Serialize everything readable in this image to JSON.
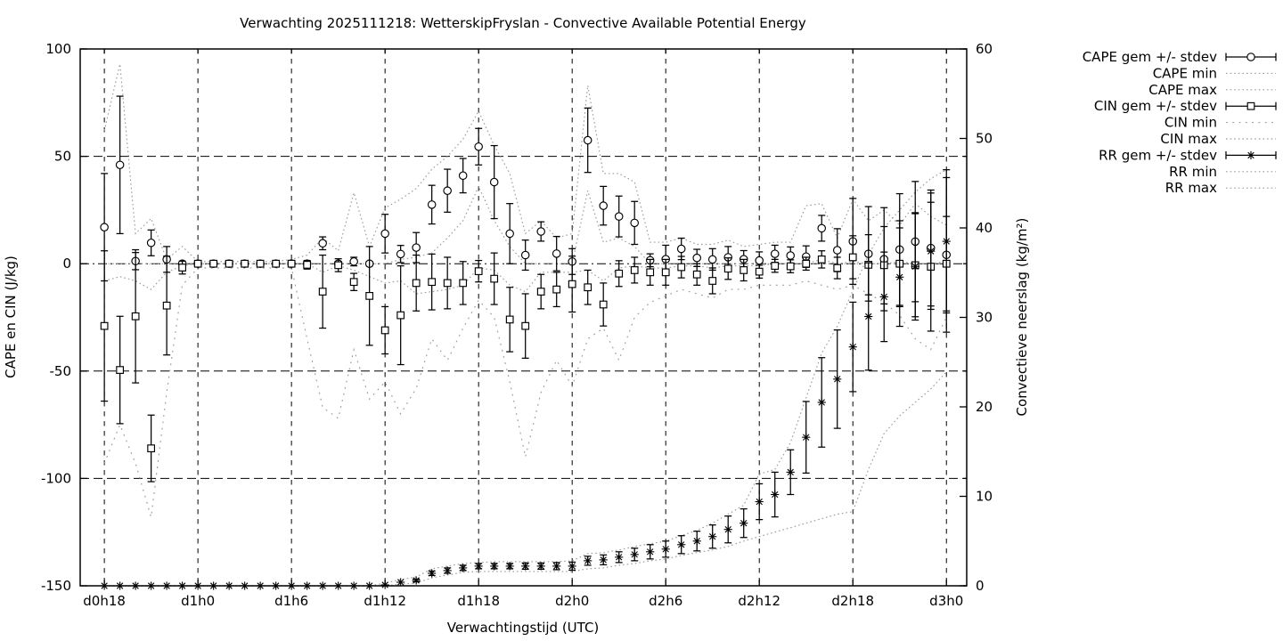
{
  "chart_data": {
    "type": "line",
    "title": "Verwachting 2025111218: WetterskipFryslan - Convective Available Potential Energy",
    "xlabel": "Verwachtingstijd (UTC)",
    "ylabel_left": "CAPE en CIN (J/kg)",
    "ylabel_right": "Convectieve neerslag (kg/m²)",
    "grid": "on",
    "legend_position": "outside-right",
    "x_range_hours": [
      -1.55,
      55.3
    ],
    "x_ticks": {
      "labels": [
        "d0h18",
        "d1h0",
        "d1h6",
        "d1h12",
        "d1h18",
        "d2h0",
        "d2h6",
        "d2h12",
        "d2h18",
        "d3h0"
      ],
      "hours": [
        0,
        6,
        12,
        18,
        24,
        30,
        36,
        42,
        48,
        54
      ]
    },
    "y_left": {
      "min": -150,
      "max": 100,
      "ticks": [
        100,
        50,
        0,
        -50,
        -100,
        -150
      ]
    },
    "y_right": {
      "min": 0,
      "max": 60,
      "ticks": [
        60,
        50,
        40,
        30,
        20,
        10,
        0
      ]
    },
    "colors": {
      "foreground": "#000000",
      "envelope": "#9c9c9c",
      "background": "#ffffff"
    },
    "series": {
      "cape_mean": [
        17,
        46,
        1.2,
        9.7,
        2,
        0,
        0,
        0,
        0,
        0,
        0,
        0,
        0,
        0,
        9.5,
        0,
        1,
        0,
        14,
        4.5,
        7.5,
        27.5,
        34,
        41,
        54.5,
        38,
        14,
        4,
        15,
        4.7,
        1,
        57.5,
        27,
        22,
        19,
        1.6,
        2.1,
        6.9,
        2.7,
        2,
        3,
        2.1,
        1.5,
        4.6,
        3.8,
        3.3,
        16.5,
        6.3,
        10.4,
        4.6,
        2.1,
        6.6,
        10.3,
        7.3,
        4.1
      ],
      "cape_sd": [
        25,
        32,
        4,
        6,
        6,
        0,
        0,
        0,
        0,
        0,
        0,
        0,
        0,
        1,
        3,
        1,
        2,
        1,
        9,
        4,
        7,
        9,
        10,
        8,
        8.5,
        17,
        14,
        7,
        4.5,
        8,
        6,
        15,
        9,
        9.5,
        10,
        3,
        6.5,
        5,
        4,
        5,
        5,
        4,
        4,
        4,
        4,
        5,
        6,
        10,
        20,
        22,
        24,
        26,
        28,
        27,
        36
      ],
      "cape_min": [
        0,
        0,
        0,
        0,
        0,
        0,
        0,
        0,
        0,
        0,
        0,
        0,
        0,
        0,
        0,
        0,
        0,
        0,
        0,
        2,
        3,
        5,
        12,
        20,
        36,
        20,
        8,
        0,
        0,
        0,
        0,
        34,
        10,
        12,
        8,
        0,
        0,
        0,
        0,
        0,
        0,
        0,
        0,
        0,
        0,
        0,
        2,
        0,
        0,
        0,
        0,
        0,
        0,
        0,
        0
      ],
      "cape_max": [
        62,
        93,
        14,
        21,
        2,
        8,
        1,
        1,
        1,
        1,
        1,
        1,
        2,
        4,
        12,
        6,
        33,
        8,
        26,
        30,
        35,
        44,
        50,
        58,
        71,
        55,
        42,
        14,
        20,
        12,
        14,
        83,
        42,
        42,
        38,
        10,
        10,
        12,
        9,
        9,
        11,
        8,
        9,
        10,
        10,
        27,
        28,
        12,
        30,
        20,
        25,
        18,
        28,
        22,
        18
      ],
      "cin_mean": [
        -29,
        -49.5,
        -24.5,
        -86,
        -19.5,
        -1.8,
        0,
        0,
        0,
        0,
        0,
        0,
        0,
        -0.5,
        -13,
        -0.7,
        -8.5,
        -15,
        -31,
        -24,
        -9,
        -8.5,
        -9,
        -9,
        -3.5,
        -7,
        -26,
        -29,
        -13,
        -12,
        -9.5,
        -11,
        -19,
        -4.6,
        -3,
        -4,
        -4,
        -1.6,
        -5,
        -8,
        -2.3,
        -3,
        -3.7,
        -1,
        -1.2,
        0,
        2,
        -2,
        3,
        -0.5,
        -0.7,
        0,
        -0.7,
        -1.4,
        0
      ],
      "cin_sd": [
        35,
        25,
        31,
        15.5,
        23,
        3,
        0,
        0,
        0,
        0,
        0,
        0,
        1,
        2,
        17,
        3,
        4,
        23,
        11,
        23,
        13,
        13,
        12,
        10,
        5,
        12,
        15,
        15,
        8,
        8,
        13,
        8,
        10,
        6,
        6,
        6,
        6,
        5,
        5,
        6,
        5,
        5,
        3,
        3,
        3,
        3,
        4,
        5,
        10,
        14,
        18,
        20,
        24,
        30,
        22
      ],
      "cin_min": [
        -93,
        -75,
        -93,
        -118,
        -60,
        -10,
        -2,
        -2,
        -2,
        -2,
        -2,
        -2,
        -2,
        -35,
        -67,
        -72,
        -40,
        -63,
        -55,
        -70,
        -58,
        -35,
        -45,
        -30,
        -17,
        -25,
        -55,
        -90,
        -60,
        -45,
        -57,
        -35,
        -30,
        -45,
        -25,
        -18,
        -15,
        -12,
        -14,
        -16,
        -12,
        -12,
        -10,
        -10,
        -10,
        -8,
        -10,
        -12,
        -10,
        -14,
        -18,
        -24,
        -35,
        -40,
        -25
      ],
      "cin_max": [
        -8,
        -6,
        -8,
        -12,
        -4,
        -1,
        0,
        0,
        0,
        0,
        0,
        0,
        0,
        0,
        -4,
        -1,
        -3,
        -6,
        -9,
        -8,
        -14,
        -13,
        -12,
        -10,
        -2,
        -3,
        -10,
        -13,
        -4,
        -4,
        -4,
        -3,
        -8,
        -2,
        -1,
        -2,
        -2,
        -1,
        -1,
        -2,
        -1,
        -1,
        -1,
        0,
        0,
        0,
        0,
        0,
        1,
        0,
        0,
        1,
        0,
        0,
        1
      ],
      "rr_mean": [
        0,
        0,
        0,
        0,
        0,
        0,
        0,
        0,
        0,
        0,
        0,
        0,
        0,
        0,
        0,
        0,
        0,
        0,
        0.1,
        0.4,
        0.6,
        1.4,
        1.7,
        2,
        2.2,
        2.2,
        2.2,
        2.2,
        2.2,
        2.2,
        2.2,
        2.8,
        2.9,
        3.2,
        3.5,
        3.8,
        4.1,
        4.6,
        5,
        5.5,
        6.3,
        7,
        9.4,
        10.2,
        12.7,
        16.6,
        20.5,
        23.1,
        26.7,
        30.1,
        32.3,
        34.5,
        35.7,
        37.4,
        38.5
      ],
      "rr_sd": [
        0,
        0,
        0,
        0,
        0,
        0,
        0,
        0,
        0,
        0,
        0,
        0,
        0,
        0,
        0,
        0,
        0,
        0,
        0.05,
        0.1,
        0.15,
        0.25,
        0.3,
        0.3,
        0.3,
        0.3,
        0.3,
        0.35,
        0.35,
        0.4,
        0.45,
        0.5,
        0.55,
        0.6,
        0.7,
        0.8,
        0.9,
        1,
        1.1,
        1.3,
        1.5,
        1.6,
        2,
        2.5,
        2.5,
        4,
        5,
        5.5,
        5,
        6,
        5,
        5.5,
        6,
        6.5,
        8
      ],
      "rr_min": [
        0,
        0,
        0,
        0,
        0,
        0,
        0,
        0,
        0,
        0,
        0,
        0,
        0,
        0,
        0,
        0,
        0,
        0,
        0,
        0.2,
        0.3,
        0.9,
        1.2,
        1.5,
        1.6,
        1.6,
        1.6,
        1.6,
        1.6,
        1.6,
        1.6,
        1.9,
        2,
        2.3,
        2.5,
        2.8,
        3,
        3.4,
        3.7,
        4,
        4.4,
        5,
        5.5,
        6,
        6.5,
        7,
        7.5,
        8,
        8.3,
        13,
        17,
        19,
        20.5,
        22,
        23.9
      ],
      "rr_max": [
        0,
        0,
        0,
        0,
        0,
        0,
        0,
        0,
        0,
        0,
        0,
        0,
        0,
        0,
        0,
        0,
        0,
        0,
        0.3,
        0.7,
        1,
        1.9,
        2.2,
        2.5,
        2.6,
        2.7,
        2.7,
        2.7,
        2.7,
        2.7,
        2.8,
        3.6,
        3.7,
        4,
        4.4,
        4.7,
        5,
        5.6,
        6.2,
        7,
        8,
        9,
        12.5,
        13,
        16,
        21,
        26,
        29,
        33,
        37,
        40,
        42,
        44,
        45.5,
        46.5
      ]
    },
    "legend": [
      {
        "label": "CAPE gem +/- stdev",
        "style": "errorbar",
        "marker": "circle"
      },
      {
        "label": "CAPE min",
        "style": "dotted",
        "marker": "none"
      },
      {
        "label": "CAPE max",
        "style": "dotted",
        "marker": "none"
      },
      {
        "label": "CIN gem +/- stdev",
        "style": "errorbar",
        "marker": "square"
      },
      {
        "label": "CIN min",
        "style": "dotted-sparse",
        "marker": "none"
      },
      {
        "label": "CIN max",
        "style": "dotted",
        "marker": "none"
      },
      {
        "label": "RR gem +/- stdev",
        "style": "errorbar",
        "marker": "asterisk"
      },
      {
        "label": "RR min",
        "style": "dotted",
        "marker": "none"
      },
      {
        "label": "RR max",
        "style": "dotted",
        "marker": "none"
      }
    ]
  }
}
